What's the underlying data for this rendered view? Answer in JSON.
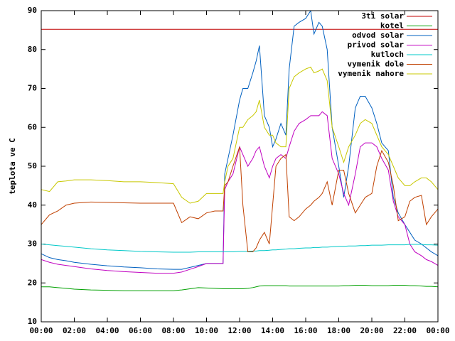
{
  "chart_data": {
    "type": "line",
    "ylabel": "teplota ve C",
    "x": [
      0,
      0.5,
      1,
      1.5,
      2,
      3,
      4,
      5,
      6,
      7,
      8,
      8.5,
      9,
      9.5,
      10,
      10.5,
      11,
      11.1,
      11.3,
      11.6,
      12,
      12.2,
      12.5,
      12.8,
      13,
      13.2,
      13.5,
      13.8,
      14,
      14.2,
      14.5,
      14.8,
      15,
      15.3,
      15.6,
      16,
      16.3,
      16.5,
      16.8,
      17,
      17.3,
      17.6,
      18,
      18.3,
      18.6,
      19,
      19.3,
      19.6,
      20,
      20.3,
      20.6,
      21,
      21.3,
      21.6,
      22,
      22.3,
      22.6,
      23,
      23.3,
      23.6,
      24
    ],
    "xlim": [
      0,
      24
    ],
    "xticks": [
      {
        "value": 0,
        "label": "00:00"
      },
      {
        "value": 2,
        "label": "02:00"
      },
      {
        "value": 4,
        "label": "04:00"
      },
      {
        "value": 6,
        "label": "06:00"
      },
      {
        "value": 8,
        "label": "08:00"
      },
      {
        "value": 10,
        "label": "10:00"
      },
      {
        "value": 12,
        "label": "12:00"
      },
      {
        "value": 14,
        "label": "14:00"
      },
      {
        "value": 16,
        "label": "16:00"
      },
      {
        "value": 18,
        "label": "18:00"
      },
      {
        "value": 20,
        "label": "20:00"
      },
      {
        "value": 22,
        "label": "22:00"
      },
      {
        "value": 24,
        "label": "00:00"
      }
    ],
    "ylim": [
      10,
      90
    ],
    "yticks": [
      10,
      20,
      30,
      40,
      50,
      60,
      70,
      80,
      90
    ],
    "legend": "top-right",
    "series": [
      {
        "name": "3ti solar",
        "color": "#c00000",
        "values": [
          85.2,
          85.2,
          85.2,
          85.2,
          85.2,
          85.2,
          85.2,
          85.2,
          85.2,
          85.2,
          85.2,
          85.2,
          85.2,
          85.2,
          85.2,
          85.2,
          85.2,
          85.2,
          85.2,
          85.2,
          85.2,
          85.2,
          85.2,
          85.2,
          85.2,
          85.2,
          85.2,
          85.2,
          85.2,
          85.2,
          85.2,
          85.2,
          85.2,
          85.2,
          85.2,
          85.2,
          85.2,
          85.2,
          85.2,
          85.2,
          85.2,
          85.2,
          85.2,
          85.2,
          85.2,
          85.2,
          85.2,
          85.2,
          85.2,
          85.2,
          85.2,
          85.2,
          85.2,
          85.2,
          85.2,
          85.2,
          85.2,
          85.2,
          85.2,
          85.2,
          85.2
        ]
      },
      {
        "name": "kotel",
        "color": "#00a000",
        "values": [
          19,
          19,
          18.8,
          18.6,
          18.4,
          18.2,
          18.1,
          18,
          18,
          18,
          18,
          18.2,
          18.5,
          18.8,
          18.7,
          18.6,
          18.5,
          18.5,
          18.5,
          18.5,
          18.5,
          18.5,
          18.6,
          18.8,
          19,
          19.2,
          19.3,
          19.3,
          19.3,
          19.3,
          19.3,
          19.3,
          19.2,
          19.2,
          19.2,
          19.2,
          19.2,
          19.2,
          19.2,
          19.2,
          19.2,
          19.2,
          19.2,
          19.3,
          19.3,
          19.4,
          19.4,
          19.4,
          19.3,
          19.3,
          19.3,
          19.3,
          19.4,
          19.4,
          19.4,
          19.3,
          19.3,
          19.2,
          19.1,
          19.1,
          19
        ]
      },
      {
        "name": "odvod solar",
        "color": "#0060c0",
        "values": [
          27.5,
          26.5,
          26,
          25.7,
          25.3,
          24.8,
          24.4,
          24.1,
          23.9,
          23.6,
          23.5,
          23.5,
          24,
          24.5,
          25,
          25,
          25,
          48,
          52,
          58,
          67,
          70,
          70,
          74,
          77,
          81,
          63,
          60,
          55,
          57,
          61,
          58,
          75,
          86,
          87,
          88,
          90,
          84,
          87,
          86,
          80,
          60,
          50,
          42,
          50,
          65,
          68,
          68,
          65,
          61,
          56,
          54,
          42,
          38,
          35,
          33,
          31,
          30,
          29,
          28,
          27
        ]
      },
      {
        "name": "privod solar",
        "color": "#c000c0",
        "values": [
          26,
          25.3,
          24.8,
          24.5,
          24.2,
          23.6,
          23.2,
          22.9,
          22.7,
          22.5,
          22.5,
          22.8,
          23.5,
          24.2,
          25,
          25,
          25,
          44,
          46,
          48,
          55,
          53,
          50,
          52,
          54,
          55,
          50,
          47,
          50,
          52,
          53,
          52,
          55,
          59,
          61,
          62,
          63,
          63,
          63,
          64,
          63,
          52,
          48,
          43,
          40,
          48,
          55,
          56,
          56,
          55,
          52,
          49,
          41,
          37,
          35,
          30,
          28,
          27,
          26,
          25.5,
          24.5
        ]
      },
      {
        "name": "kutloch",
        "color": "#00c8c8",
        "values": [
          30,
          29.8,
          29.6,
          29.4,
          29.2,
          28.8,
          28.5,
          28.3,
          28.1,
          28,
          27.9,
          27.9,
          27.9,
          28,
          28,
          28,
          28,
          28,
          28,
          28,
          28.1,
          28.1,
          28.1,
          28.2,
          28.2,
          28.3,
          28.3,
          28.4,
          28.5,
          28.5,
          28.6,
          28.7,
          28.8,
          28.8,
          28.9,
          29,
          29,
          29.1,
          29.1,
          29.2,
          29.2,
          29.3,
          29.4,
          29.4,
          29.5,
          29.5,
          29.6,
          29.6,
          29.7,
          29.7,
          29.7,
          29.8,
          29.8,
          29.8,
          29.8,
          29.9,
          29.9,
          29.9,
          29.8,
          29.8,
          29.7
        ]
      },
      {
        "name": "vymenik dole",
        "color": "#c04000",
        "values": [
          35,
          37.5,
          38.5,
          40,
          40.5,
          40.8,
          40.7,
          40.6,
          40.5,
          40.5,
          40.5,
          35.5,
          37,
          36.5,
          38,
          38.5,
          38.5,
          45,
          46,
          50,
          55,
          40,
          28,
          28,
          29,
          31,
          33,
          30,
          40,
          50,
          52,
          53,
          37,
          36,
          37,
          39,
          40,
          41,
          42,
          43,
          46,
          40,
          49,
          49,
          43,
          38,
          40,
          42,
          43,
          50,
          54,
          51,
          45,
          36,
          37,
          41,
          42,
          42.5,
          35,
          37,
          39
        ]
      },
      {
        "name": "vymenik nahore",
        "color": "#c8c800",
        "values": [
          44,
          43.5,
          46,
          46.2,
          46.5,
          46.5,
          46.3,
          46,
          46,
          45.8,
          45.5,
          42,
          40.5,
          41,
          43,
          43,
          43,
          46,
          50,
          52,
          60,
          60,
          62,
          63,
          64,
          67,
          60,
          58,
          58,
          56,
          55,
          55,
          70,
          73,
          74,
          75,
          75.5,
          74,
          74.5,
          75,
          72,
          60,
          55,
          51,
          55,
          58,
          61,
          62,
          61,
          58,
          55,
          53,
          50,
          47,
          45,
          45,
          46,
          47,
          47,
          46,
          44
        ]
      }
    ]
  }
}
